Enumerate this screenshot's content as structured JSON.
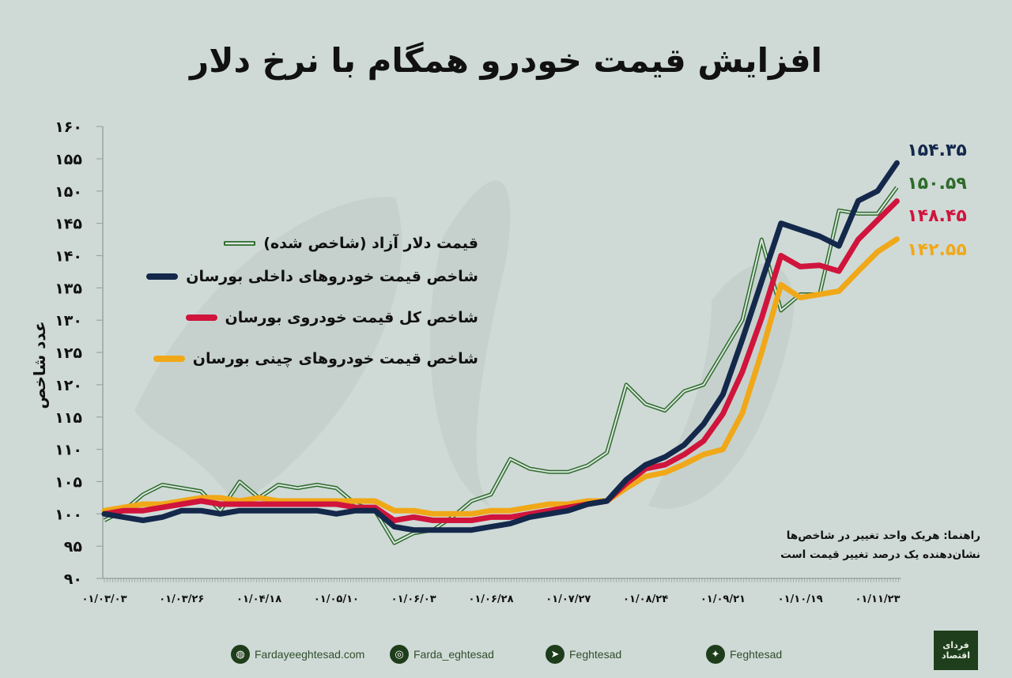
{
  "title": "افزایش قیمت خودرو همگام با نرخ دلار",
  "note": [
    "راهنما: هریک واحد تغییر در شاخص‌ها",
    "نشان‌دهنده یک درصد تغییر قیمت است"
  ],
  "footer": {
    "website": {
      "label": "Fardayeeghtesad.com",
      "icon": "globe-icon"
    },
    "instagram": {
      "label": "Farda_eghtesad",
      "icon": "instagram-icon"
    },
    "telegram": {
      "label": "Feghtesad",
      "icon": "telegram-icon"
    },
    "twitter": {
      "label": "Feghtesad",
      "icon": "twitter-icon"
    }
  },
  "logo": "فردای اقتصاد",
  "chart_data": {
    "type": "line",
    "title": "افزایش قیمت خودرو همگام با نرخ دلار",
    "ylabel": "عدد شاخص",
    "xlabel": "",
    "ylim": [
      90,
      160
    ],
    "y_ticks": [
      160,
      155,
      150,
      145,
      140,
      135,
      130,
      125,
      120,
      115,
      110,
      105,
      100,
      95,
      90
    ],
    "y_tick_labels": [
      "۱۶۰",
      "۱۵۵",
      "۱۵۰",
      "۱۴۵",
      "۱۴۰",
      "۱۳۵",
      "۱۳۰",
      "۱۲۵",
      "۱۲۰",
      "۱۱۵",
      "۱۱۰",
      "۱۰۵",
      "۱۰۰",
      "۹۵",
      "۹۰"
    ],
    "x_tick_labels": [
      "۰۱/۰۳/۰۳",
      "۰۱/۰۳/۲۶",
      "۰۱/۰۴/۱۸",
      "۰۱/۰۵/۱۰",
      "۰۱/۰۶/۰۳",
      "۰۱/۰۶/۲۸",
      "۰۱/۰۷/۲۷",
      "۰۱/۰۸/۲۴",
      "۰۱/۰۹/۲۱",
      "۰۱/۱۰/۱۹",
      "۰۱/۱۱/۲۳"
    ],
    "grid": false,
    "legend_position": "left",
    "series": [
      {
        "name": "قیمت دلار آزاد (شاخص شده)",
        "color": "#2e6b2a",
        "style": "double",
        "end_label": "۱۵۰.۵۹",
        "end_value": 150.59,
        "values": [
          99,
          100.5,
          103,
          104.5,
          104,
          103.5,
          100.5,
          105,
          102.5,
          104.5,
          104,
          104.5,
          104,
          101.5,
          100.5,
          95.5,
          97,
          97.5,
          99.5,
          102,
          103,
          108.5,
          107,
          106.5,
          106.5,
          107.5,
          109.5,
          120,
          117,
          116,
          119,
          120,
          125,
          130,
          142.5,
          131.5,
          134,
          134,
          147,
          146.5,
          146.5,
          150.59
        ]
      },
      {
        "name": "شاخص قیمت خودروهای داخلی بورسان",
        "color": "#14284b",
        "end_label": "۱۵۴.۳۵",
        "end_value": 154.35,
        "values": [
          100,
          99.5,
          99,
          99.5,
          100.5,
          100.5,
          100,
          100.5,
          100.5,
          100.5,
          100.5,
          100.5,
          100,
          100.5,
          100.5,
          98,
          97.5,
          97.5,
          97.5,
          97.5,
          98,
          98.5,
          99.5,
          100,
          100.5,
          101.5,
          102,
          105.3,
          107.6,
          108.8,
          110.7,
          113.9,
          118.5,
          127,
          136,
          145,
          144,
          143,
          141.5,
          148.5,
          150,
          154.35
        ]
      },
      {
        "name": "شاخص کل قیمت خودروی بورسان",
        "color": "#d0143c",
        "end_label": "۱۴۸.۴۵",
        "end_value": 148.45,
        "values": [
          100,
          100.5,
          100.5,
          101,
          101.5,
          102,
          101.5,
          101.5,
          101.5,
          101.5,
          101.5,
          101.5,
          101.5,
          101,
          101,
          99,
          99.5,
          99,
          99,
          99,
          99.5,
          99.5,
          100,
          100.5,
          101,
          101.5,
          102,
          104.7,
          107,
          107.6,
          109.2,
          111.3,
          115.5,
          122,
          130.3,
          140,
          138.3,
          138.5,
          137.6,
          142.5,
          145.5,
          148.45
        ]
      },
      {
        "name": "شاخص قیمت خودروهای چینی بورسان",
        "color": "#f0a818",
        "end_label": "۱۴۲.۵۵",
        "end_value": 142.55,
        "values": [
          100.5,
          101,
          101.5,
          101.5,
          102,
          102.5,
          102.5,
          102,
          102.5,
          102,
          102,
          102,
          102,
          102,
          102,
          100.5,
          100.5,
          100,
          100,
          100,
          100.5,
          100.5,
          101,
          101.5,
          101.5,
          102,
          102,
          104,
          105.8,
          106.4,
          107.7,
          109.2,
          110,
          115.6,
          125,
          135.5,
          133.5,
          134,
          134.5,
          137.6,
          140.6,
          142.55
        ]
      }
    ]
  }
}
